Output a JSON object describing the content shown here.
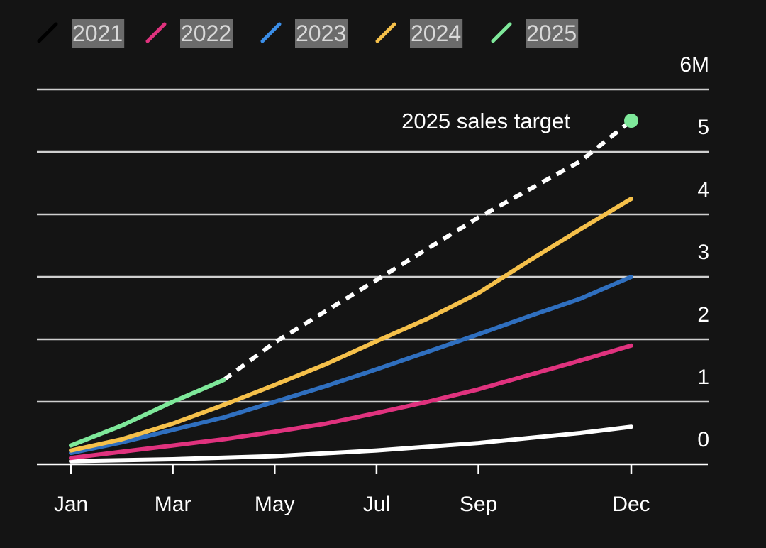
{
  "chart_data": {
    "type": "line",
    "title": "",
    "xlabel": "",
    "ylabel": "",
    "x_ticks": [
      {
        "label": "Jan",
        "month": 1
      },
      {
        "label": "Mar",
        "month": 3
      },
      {
        "label": "May",
        "month": 5
      },
      {
        "label": "Jul",
        "month": 7
      },
      {
        "label": "Sep",
        "month": 9
      },
      {
        "label": "Dec",
        "month": 12
      }
    ],
    "xlim": [
      1,
      12
    ],
    "y_ticks": [
      {
        "label": "0",
        "value": 0
      },
      {
        "label": "1",
        "value": 1
      },
      {
        "label": "2",
        "value": 2
      },
      {
        "label": "3",
        "value": 3
      },
      {
        "label": "4",
        "value": 4
      },
      {
        "label": "5",
        "value": 5
      },
      {
        "label": "6M",
        "value": 6
      }
    ],
    "ylim": [
      0,
      6
    ],
    "grid": true,
    "legend_position": "top-left",
    "series": [
      {
        "name": "2021",
        "color": "#000000",
        "line_color": "#ffffff",
        "points": [
          [
            1,
            0.05
          ],
          [
            3,
            0.08
          ],
          [
            5,
            0.13
          ],
          [
            7,
            0.22
          ],
          [
            8,
            0.28
          ],
          [
            9,
            0.34
          ],
          [
            10,
            0.42
          ],
          [
            11,
            0.5
          ],
          [
            12,
            0.6
          ]
        ]
      },
      {
        "name": "2022",
        "color": "#e0327e",
        "line_color": "#e0327e",
        "points": [
          [
            1,
            0.1
          ],
          [
            2,
            0.2
          ],
          [
            3,
            0.3
          ],
          [
            4,
            0.4
          ],
          [
            5,
            0.52
          ],
          [
            6,
            0.65
          ],
          [
            7,
            0.82
          ],
          [
            8,
            1.0
          ],
          [
            9,
            1.2
          ],
          [
            10,
            1.43
          ],
          [
            11,
            1.66
          ],
          [
            12,
            1.9
          ]
        ]
      },
      {
        "name": "2023",
        "color": "#3b8ee8",
        "line_color": "#2f6fbf",
        "points": [
          [
            1,
            0.18
          ],
          [
            2,
            0.35
          ],
          [
            3,
            0.55
          ],
          [
            4,
            0.75
          ],
          [
            5,
            1.0
          ],
          [
            6,
            1.25
          ],
          [
            7,
            1.52
          ],
          [
            8,
            1.8
          ],
          [
            9,
            2.08
          ],
          [
            10,
            2.37
          ],
          [
            11,
            2.65
          ],
          [
            12,
            3.0
          ]
        ]
      },
      {
        "name": "2024",
        "color": "#f5c04a",
        "line_color": "#f5c04a",
        "points": [
          [
            1,
            0.22
          ],
          [
            2,
            0.4
          ],
          [
            3,
            0.65
          ],
          [
            4,
            0.95
          ],
          [
            5,
            1.27
          ],
          [
            6,
            1.6
          ],
          [
            7,
            1.97
          ],
          [
            8,
            2.33
          ],
          [
            9,
            2.74
          ],
          [
            10,
            3.26
          ],
          [
            11,
            3.76
          ],
          [
            12,
            4.25
          ]
        ]
      },
      {
        "name": "2025",
        "color": "#7ee89a",
        "line_color": "#7ee89a",
        "points": [
          [
            1,
            0.3
          ],
          [
            2,
            0.62
          ],
          [
            3,
            1.0
          ],
          [
            4,
            1.35
          ]
        ]
      }
    ],
    "projection": {
      "series": "2025",
      "label": "2025 sales target",
      "color": "#ffffff",
      "points": [
        [
          4,
          1.35
        ],
        [
          5,
          1.95
        ],
        [
          7,
          2.95
        ],
        [
          9,
          3.95
        ],
        [
          11,
          4.85
        ],
        [
          12,
          5.5
        ]
      ],
      "target_marker_color": "#7ee89a"
    }
  }
}
